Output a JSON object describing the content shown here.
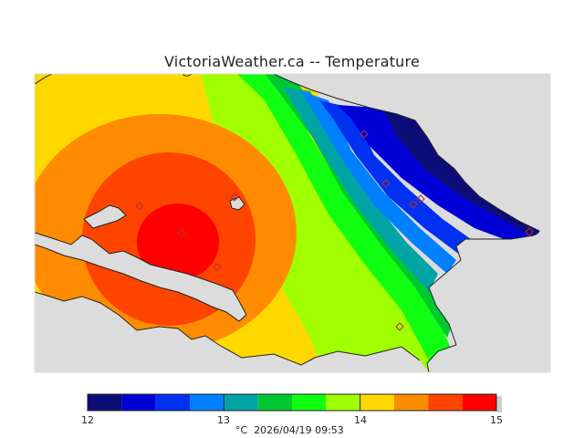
{
  "title": "VictoriaWeather.ca -- Temperature",
  "colors": {
    "land": "#dcdcdc",
    "contours": [
      "#0c0c78",
      "#0000d6",
      "#0030f0",
      "#0080ff",
      "#00a4a4",
      "#00c830",
      "#10ff10",
      "#a0ff00",
      "#ffd800",
      "#ff8c00",
      "#ff4400",
      "#ff0000"
    ]
  },
  "colorbar": {
    "ticks": [
      "12",
      "13",
      "14",
      "15"
    ],
    "unit": "°C",
    "timestamp": "2026/04/19 09:53"
  },
  "stations_count": 10
}
